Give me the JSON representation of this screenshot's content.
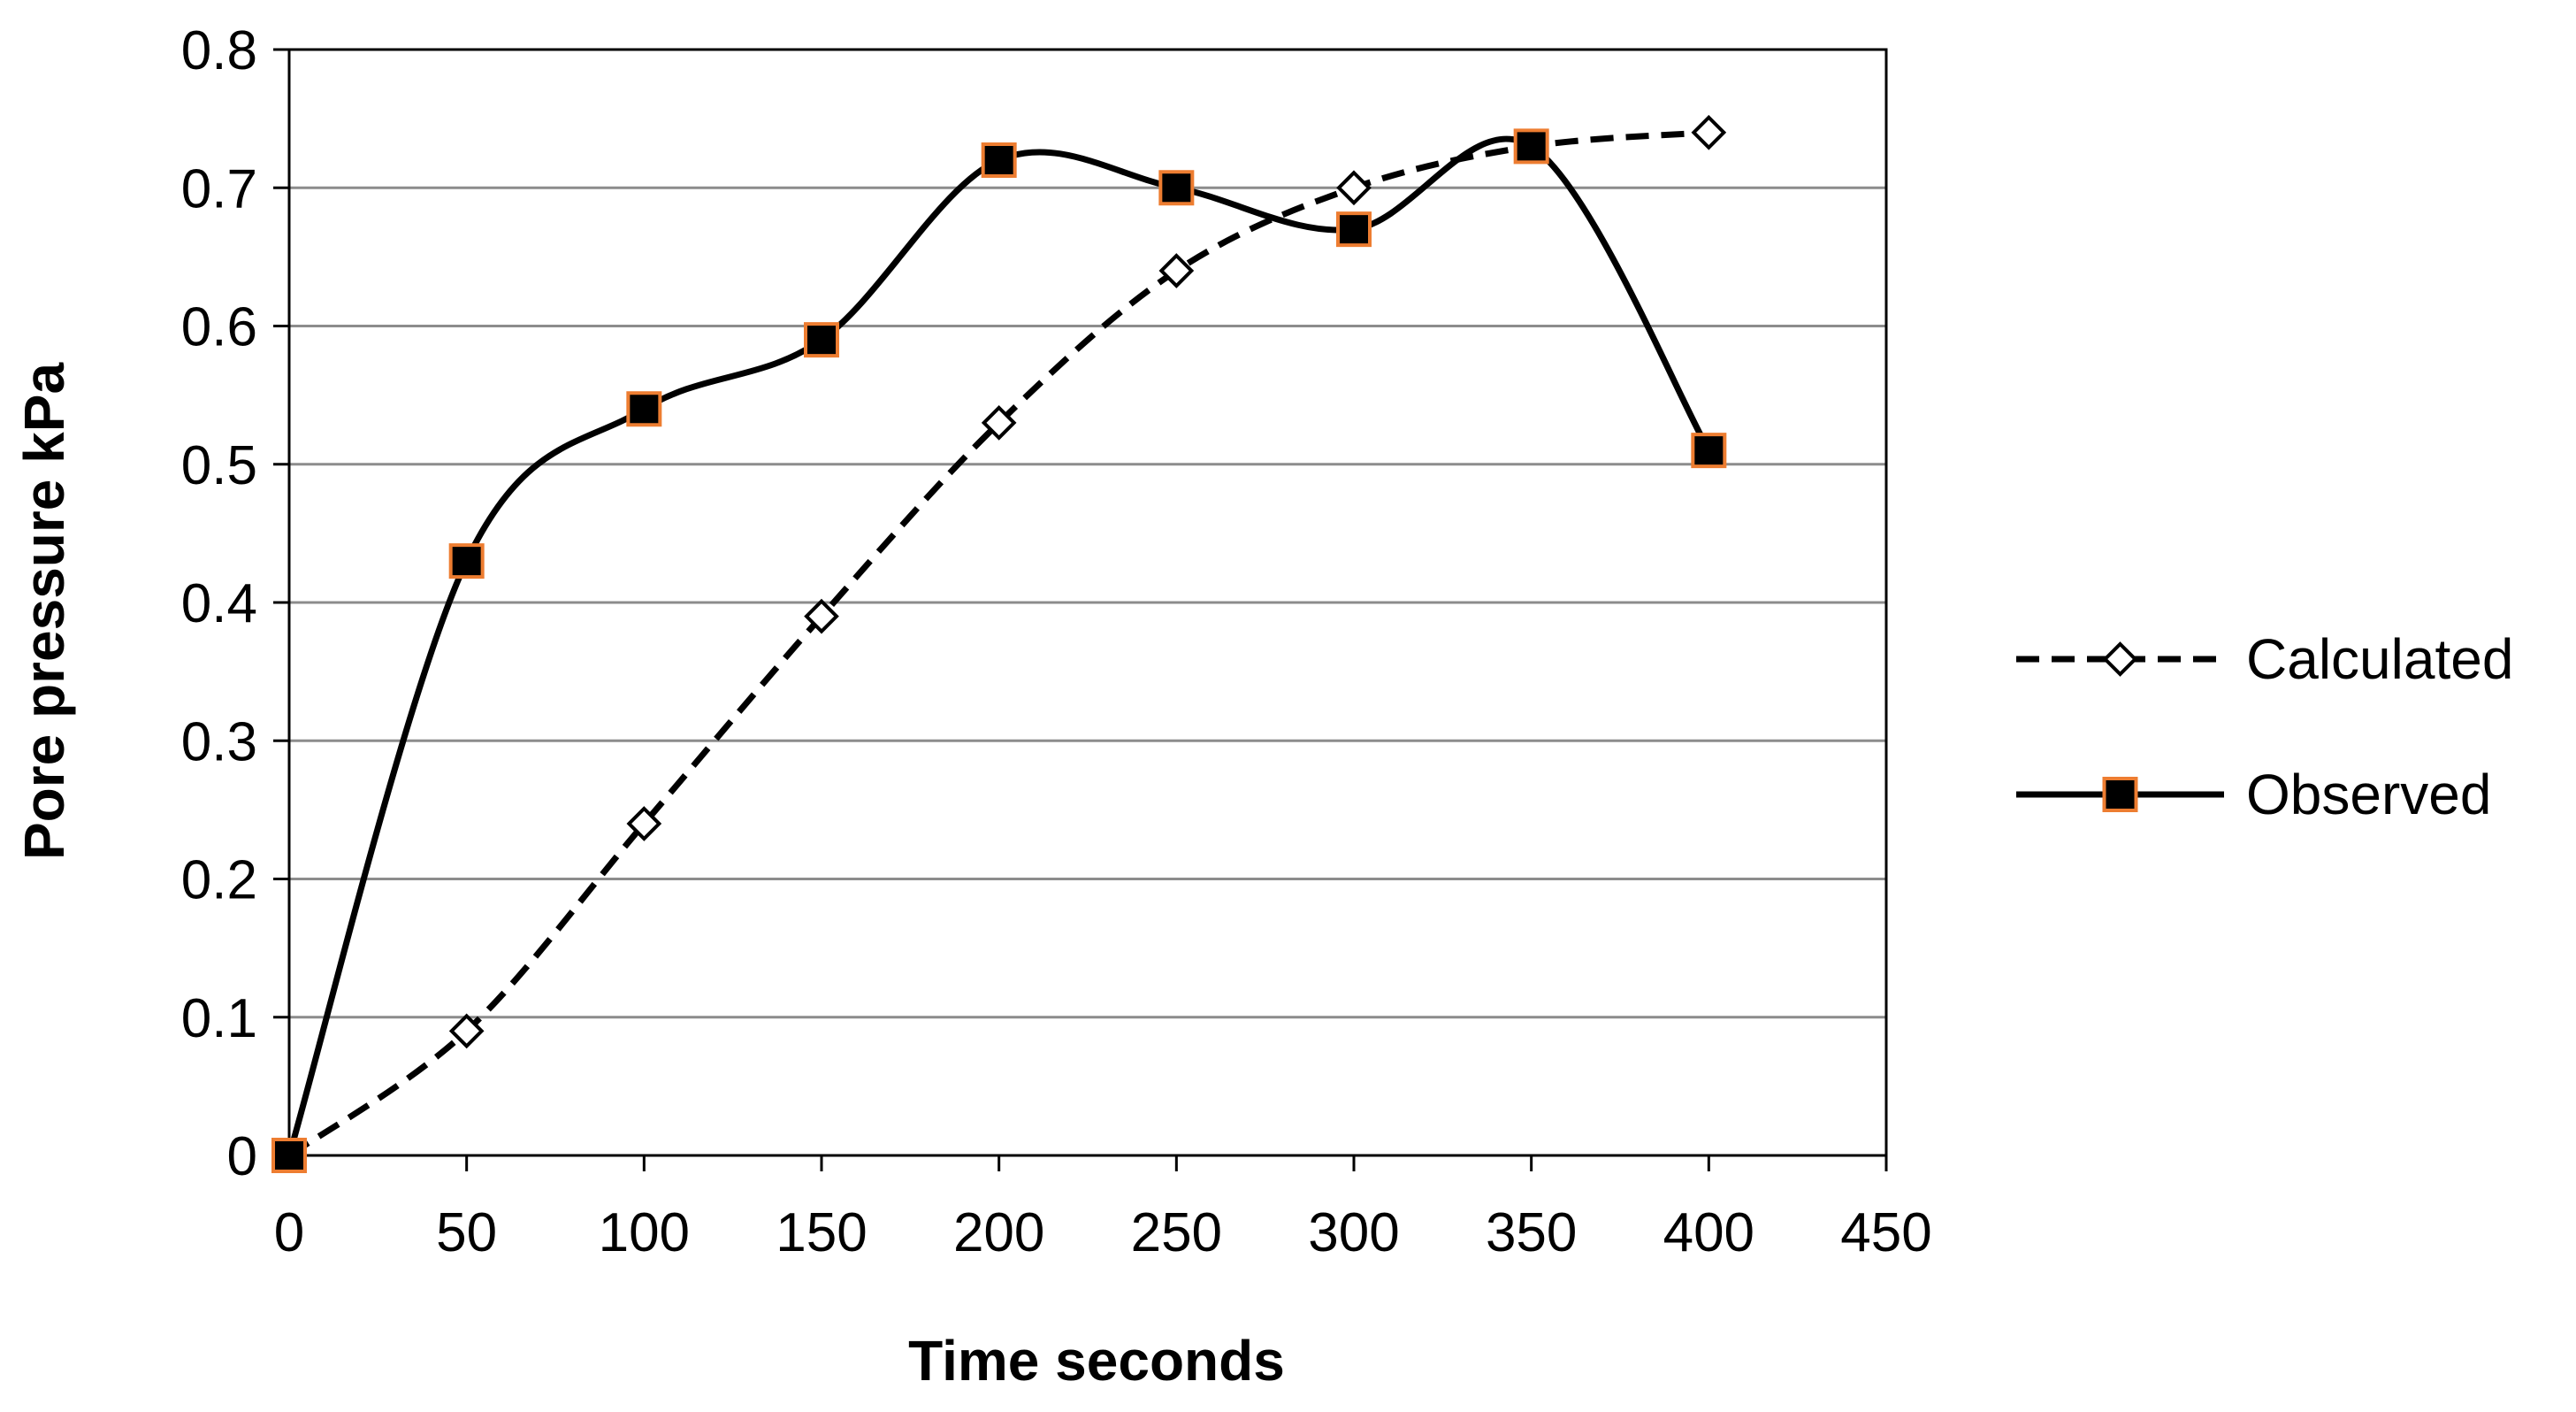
{
  "chart_data": {
    "type": "line",
    "title": "",
    "xlabel": "Time seconds",
    "ylabel": "Pore pressure kPa",
    "xlim": [
      0,
      450
    ],
    "ylim": [
      0,
      0.8
    ],
    "x_ticks": [
      "0",
      "50",
      "100",
      "150",
      "200",
      "250",
      "300",
      "350",
      "400",
      "450"
    ],
    "y_ticks": [
      "0",
      "0.1",
      "0.2",
      "0.3",
      "0.4",
      "0.5",
      "0.6",
      "0.7",
      "0.8"
    ],
    "grid": "horizontal",
    "legend_position": "right",
    "series": [
      {
        "name": "Calculated",
        "line_style": "dashed",
        "marker": "diamond-open",
        "line_color": "#000000",
        "marker_color": "#ffffff",
        "x": [
          0,
          50,
          100,
          150,
          200,
          250,
          300,
          350,
          400
        ],
        "values": [
          0,
          0.09,
          0.24,
          0.39,
          0.53,
          0.64,
          0.7,
          0.73,
          0.74
        ]
      },
      {
        "name": "Observed",
        "line_style": "solid",
        "marker": "square-filled",
        "line_color": "#000000",
        "marker_color": "#000000",
        "marker_edge_color": "#ed7d31",
        "x": [
          0,
          50,
          100,
          150,
          200,
          250,
          300,
          350,
          400
        ],
        "values": [
          0,
          0.43,
          0.54,
          0.59,
          0.72,
          0.7,
          0.67,
          0.73,
          0.51
        ]
      }
    ]
  }
}
